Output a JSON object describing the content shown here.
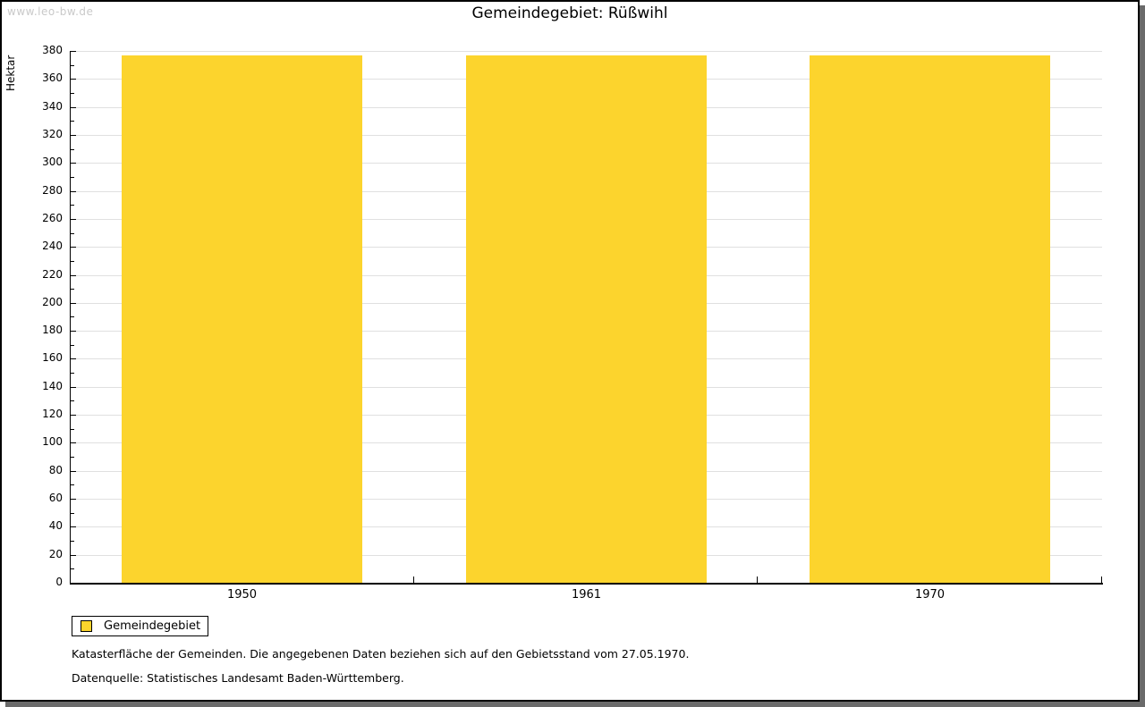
{
  "page": {
    "watermark": "www.leo-bw.de",
    "title": "Gemeindegebiet: Rüßwihl"
  },
  "chart_data": {
    "type": "bar",
    "title": "Gemeindegebiet: Rüßwihl",
    "categories": [
      "1950",
      "1961",
      "1970"
    ],
    "series": [
      {
        "name": "Gemeindegebiet",
        "values": [
          377,
          377,
          377
        ]
      }
    ],
    "xlabel": "",
    "ylabel": "Hektar",
    "ylim": [
      0,
      380
    ],
    "ytick_step": 20,
    "ytick_minor_step": 10,
    "grid": "horizontal-light-gray",
    "legend_position": "bottom-left",
    "bar_color": "#FCD42D"
  },
  "legend": {
    "items": [
      {
        "label": "Gemeindegebiet",
        "color": "#FCD42D",
        "swatch_icon": "square-swatch-icon"
      }
    ]
  },
  "footnotes": [
    "Katasterfläche der Gemeinden. Die angegebenen Daten beziehen sich auf den Gebietsstand vom 27.05.1970.",
    "Datenquelle: Statistisches Landesamt Baden-Württemberg."
  ],
  "colors": {
    "bar": "#FCD42D",
    "grid": "#E0E0E0",
    "axis": "#000000",
    "watermark": "#C9C9C9",
    "frame_border": "#000000",
    "frame_shadow": "#6A6A6A",
    "background": "#FFFFFF"
  }
}
